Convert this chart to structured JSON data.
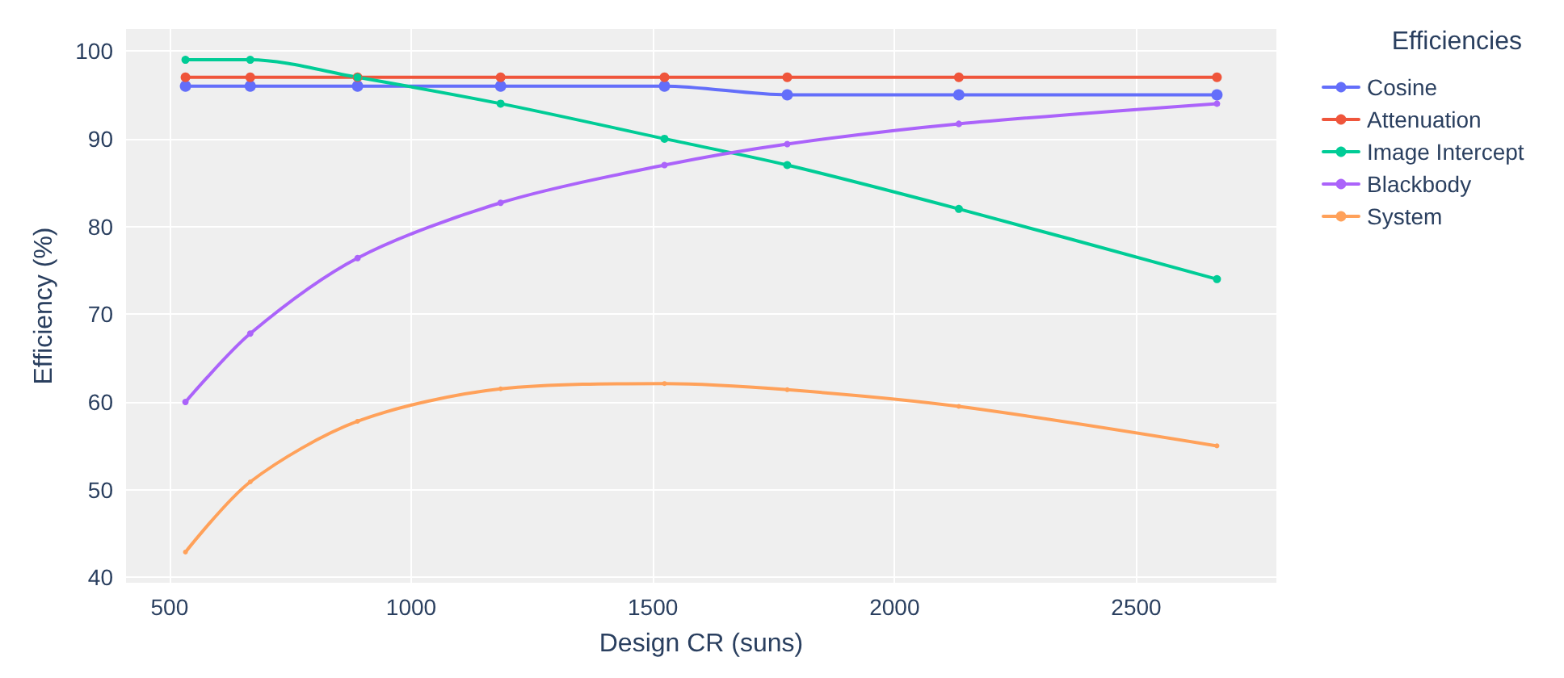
{
  "chart_data": {
    "type": "line",
    "xlabel": "Design CR (suns)",
    "ylabel": "Efficiency (%)",
    "legend_title": "Efficiencies",
    "x": [
      533,
      667,
      889,
      1185,
      1524,
      1778,
      2133,
      2667
    ],
    "series": [
      {
        "name": "Cosine",
        "color": "#636efa",
        "values": [
          96,
          96,
          96,
          96,
          96,
          95,
          95,
          95
        ]
      },
      {
        "name": "Attenuation",
        "color": "#ef553b",
        "values": [
          97,
          97,
          97,
          97,
          97,
          97,
          97,
          97
        ]
      },
      {
        "name": "Image Intercept",
        "color": "#00cc96",
        "values": [
          99,
          99,
          97,
          94,
          90,
          87,
          82,
          74
        ]
      },
      {
        "name": "Blackbody",
        "color": "#ab63fa",
        "values": [
          60,
          67.8,
          76.4,
          82.7,
          87,
          89.4,
          91.7,
          94
        ]
      },
      {
        "name": "System",
        "color": "#ffa15a",
        "values": [
          42.9,
          50.9,
          57.8,
          61.5,
          62.1,
          61.4,
          59.5,
          55
        ]
      }
    ],
    "xlim": [
      410,
      2790
    ],
    "xticks": [
      500,
      1000,
      1500,
      2000,
      2500
    ],
    "ylim": [
      39.4,
      102.5
    ],
    "yticks": [
      40,
      50,
      60,
      70,
      80,
      90,
      100
    ],
    "grid": true,
    "legend": "right",
    "marker": "circle",
    "line_style": "solid"
  }
}
